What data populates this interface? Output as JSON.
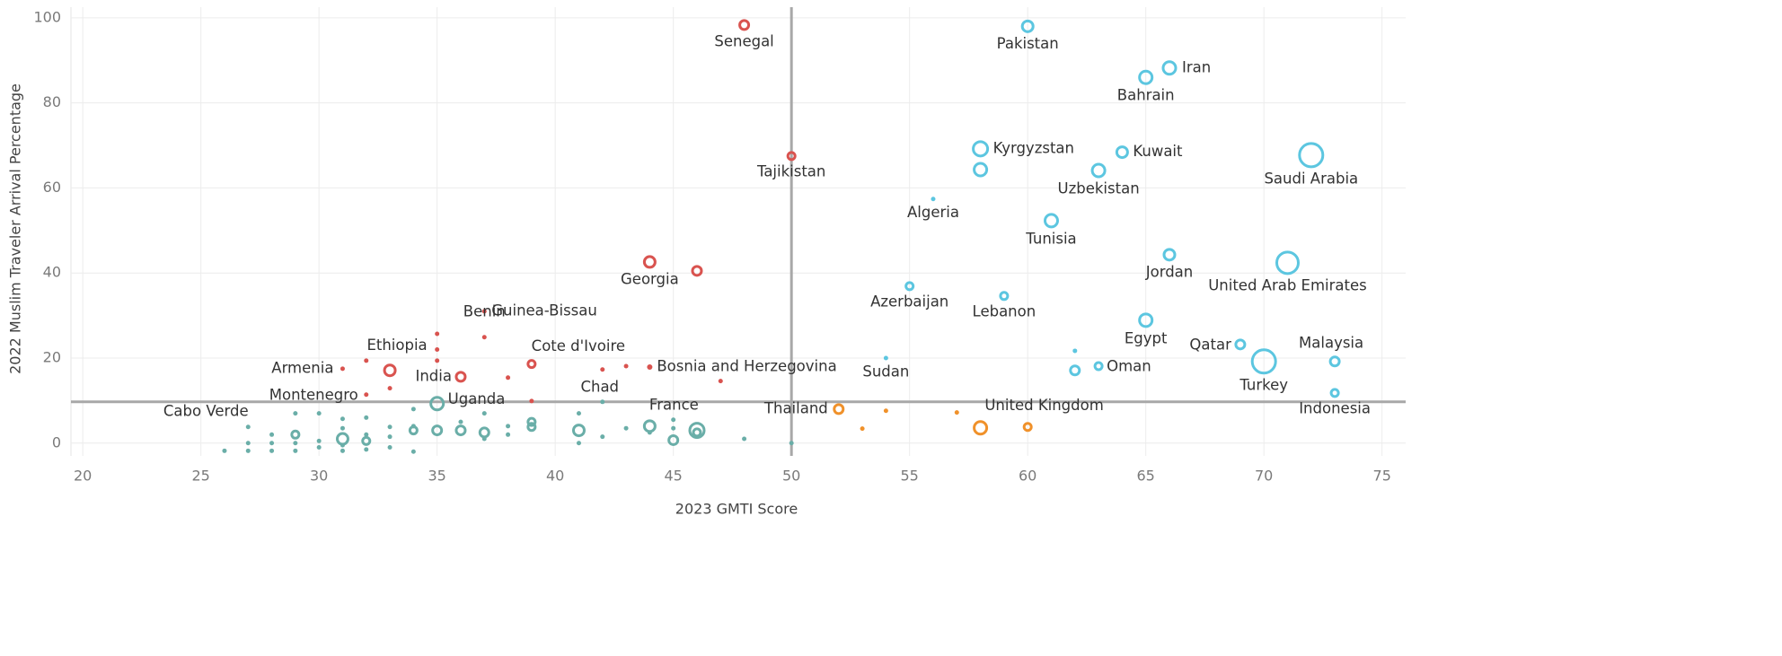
{
  "chart_data": {
    "type": "scatter",
    "xlabel": "2023 GMTI Score",
    "ylabel": "2022 Muslim Traveler Arrival Percentage",
    "xlim": [
      19.5,
      76
    ],
    "ylim": [
      -3,
      102.5
    ],
    "xticks": [
      20,
      25,
      30,
      35,
      40,
      45,
      50,
      55,
      60,
      65,
      70,
      75
    ],
    "yticks": [
      0,
      20,
      40,
      60,
      80,
      100
    ],
    "grid": true,
    "xref": 50,
    "yref": 9.7,
    "series": [
      {
        "color": "#d9534f",
        "x": [
          48,
          50,
          44,
          46,
          37,
          35,
          35,
          35,
          37,
          31,
          32,
          33,
          36,
          33,
          32,
          38,
          39,
          42,
          43,
          44,
          47,
          39
        ],
        "values": [
          98.3,
          67.5,
          42.6,
          40.5,
          31,
          25.7,
          22,
          19.4,
          24.9,
          17.5,
          19.4,
          17.1,
          15.6,
          12.9,
          11.4,
          15.4,
          18.6,
          17.3,
          18.1,
          17.9,
          14.6,
          9.9
        ],
        "sizes": [
          5,
          4,
          6,
          5,
          2,
          2,
          2,
          2,
          2,
          2,
          2,
          6,
          5,
          2,
          2,
          2,
          4,
          2,
          2,
          2.5,
          2,
          2
        ],
        "labels": [
          "Senegal",
          "Tajikistan",
          "Georgia",
          null,
          "Guinea-Bissau",
          null,
          null,
          null,
          "Benin",
          "Armenia",
          null,
          "Ethiopia",
          "India",
          null,
          "Montenegro",
          null,
          "Cote d'Ivoire",
          null,
          null,
          "Bosnia and Herzegovina",
          null,
          null
        ]
      },
      {
        "color": "#6aaea8",
        "x": [
          35,
          42,
          27,
          44,
          46,
          26,
          27,
          27,
          28,
          28,
          28,
          29,
          29,
          29,
          29,
          30,
          30,
          30,
          31,
          31,
          31,
          31,
          31,
          32,
          32,
          32,
          32,
          33,
          33,
          33,
          34,
          34,
          34,
          34,
          35,
          36,
          36,
          37,
          37,
          37,
          38,
          38,
          39,
          39,
          41,
          41,
          41,
          42,
          43,
          44,
          45,
          45,
          45,
          46,
          48,
          50
        ],
        "values": [
          9.3,
          9.7,
          3.8,
          4,
          3,
          -1.8,
          0,
          -1.8,
          2,
          0,
          -1.8,
          7,
          2,
          0,
          -1.8,
          7,
          0.5,
          -1,
          5.7,
          3.5,
          1,
          -0.5,
          -1.8,
          6,
          2,
          0.5,
          -1.5,
          3.8,
          1.5,
          -1,
          8,
          4,
          3,
          -2,
          3,
          5,
          3,
          7,
          2.5,
          1,
          4,
          2,
          5,
          3.8,
          3,
          0,
          7,
          1.5,
          3.5,
          2.5,
          5.5,
          3.5,
          0.7,
          2.5,
          1,
          0
        ],
        "sizes": [
          7,
          2,
          2,
          6,
          8,
          2,
          2,
          2,
          2,
          2,
          2,
          2,
          4,
          2,
          2,
          2,
          2,
          2,
          2,
          2,
          6,
          2,
          2,
          2,
          2,
          4,
          2,
          2,
          2,
          2,
          2,
          2,
          4,
          2,
          5,
          2,
          5,
          2,
          5,
          2,
          2,
          2,
          4,
          4,
          6,
          2,
          2,
          2,
          2,
          2,
          2,
          2,
          5,
          4,
          2,
          2
        ],
        "labels": [
          "Uganda",
          "Chad",
          "Cabo Verde",
          "France",
          null,
          null,
          null,
          null,
          null,
          null,
          null,
          null,
          null,
          null,
          null,
          null,
          null,
          null,
          null,
          null,
          null,
          null,
          null,
          null,
          null,
          null,
          null,
          null,
          null,
          null,
          null,
          null,
          null,
          null,
          null,
          null,
          null,
          null,
          null,
          null,
          null,
          null,
          null,
          null,
          null,
          null,
          null,
          null,
          null,
          null,
          null,
          null,
          null,
          null,
          null,
          null
        ]
      },
      {
        "color": "#f0912a",
        "x": [
          52,
          53,
          54,
          57,
          58,
          60
        ],
        "values": [
          8,
          3.4,
          7.6,
          7.2,
          3.6,
          3.8
        ],
        "sizes": [
          5,
          2,
          2,
          2,
          7,
          4
        ],
        "labels": [
          "Thailand",
          null,
          null,
          null,
          "United Kingdom",
          null
        ]
      },
      {
        "color": "#5cc6e0",
        "x": [
          60,
          66,
          65,
          58,
          58,
          64,
          63,
          72,
          56,
          61,
          66,
          71,
          55,
          59,
          65,
          54,
          62,
          69,
          63,
          62,
          70,
          73,
          73
        ],
        "values": [
          98,
          88.2,
          86,
          69.2,
          64.3,
          68.4,
          64.1,
          67.7,
          57.4,
          52.3,
          44.3,
          42.4,
          36.9,
          34.6,
          28.9,
          20,
          21.7,
          23.2,
          18.1,
          17.1,
          19.2,
          19.2,
          11.8
        ],
        "sizes": [
          6,
          7,
          7,
          8,
          7,
          6,
          7,
          13,
          2,
          7,
          6,
          12,
          4,
          4,
          7,
          2,
          2,
          5,
          4,
          5,
          13,
          5,
          4
        ],
        "labels": [
          "Pakistan",
          "Iran",
          "Bahrain",
          "Kyrgyzstan",
          null,
          "Kuwait",
          "Uzbekistan",
          "Saudi Arabia",
          "Algeria",
          "Tunisia",
          "Jordan",
          "United Arab Emirates",
          "Azerbaijan",
          "Lebanon",
          "Egypt",
          "Sudan",
          null,
          "Qatar",
          "Oman",
          null,
          "Turkey",
          "Malaysia",
          "Indonesia"
        ]
      }
    ]
  }
}
